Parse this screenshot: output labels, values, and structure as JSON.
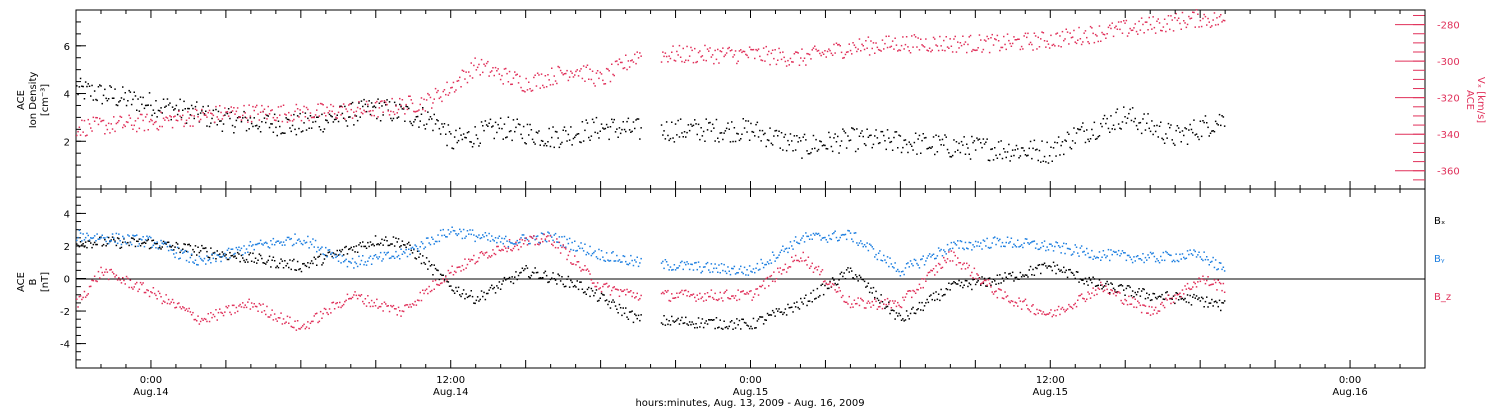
{
  "colors": {
    "black": "#000000",
    "red": "#e0305a",
    "blue": "#1e7fe0"
  },
  "chart_data": [
    {
      "type": "scatter",
      "panel": "top",
      "left_axis": {
        "label_line1": "ACE",
        "label_line2": "Ion Density",
        "label_line3": "[cm⁻³]",
        "ylim": [
          0,
          7.5
        ],
        "ticks": [
          2,
          4,
          6
        ]
      },
      "right_axis": {
        "label_line1": "ACE",
        "label_line2": "Vₓ [km/s]",
        "ylim": [
          -370,
          -272
        ],
        "ticks": [
          -280,
          -300,
          -320,
          -340,
          -360
        ],
        "tick_labels": [
          "-280",
          "-300",
          "-320",
          "-340",
          "-360"
        ]
      },
      "series": [
        {
          "color": "black",
          "axis": "left",
          "x": [
            -3,
            0,
            3,
            6,
            9,
            11,
            11.6,
            12,
            14,
            16,
            18,
            19.5,
            24,
            26,
            28,
            30,
            32,
            36,
            37,
            39,
            41,
            43
          ],
          "y": [
            4.2,
            3.6,
            2.9,
            2.7,
            3.4,
            3.0,
            2.7,
            2.0,
            2.6,
            2.2,
            2.6,
            2.5,
            2.5,
            1.8,
            2.1,
            2.0,
            1.8,
            1.6,
            2.3,
            3.1,
            2.2,
            3.0
          ]
        },
        {
          "color": "red",
          "axis": "right",
          "x": [
            -3,
            0,
            3,
            6,
            9,
            11,
            12,
            13,
            15,
            17,
            18,
            19.5,
            24,
            26,
            28,
            30,
            32,
            34,
            36,
            38,
            40,
            42,
            43
          ],
          "y": [
            -336,
            -333,
            -328,
            -328,
            -326,
            -322,
            -314,
            -302,
            -312,
            -304,
            -310,
            -296,
            -296,
            -298,
            -292,
            -290,
            -290,
            -290,
            -288,
            -284,
            -280,
            -276,
            -278
          ]
        }
      ]
    },
    {
      "type": "scatter",
      "panel": "bottom",
      "left_axis": {
        "label_line1": "ACE",
        "label_line2": "B",
        "label_line3": "[nT]",
        "ylim": [
          -5.5,
          5.5
        ],
        "ticks": [
          4,
          2,
          0,
          -2,
          -4
        ],
        "tick_labels": [
          "4",
          "2",
          "0",
          "-2",
          "-4"
        ]
      },
      "legend": {
        "position": "right",
        "entries": [
          {
            "label": "Bₓ",
            "color": "black"
          },
          {
            "label": "Bᵧ",
            "color": "blue"
          },
          {
            "label": "B_z",
            "color": "red"
          }
        ]
      },
      "series": [
        {
          "color": "black",
          "x": [
            -3,
            0,
            3,
            6,
            9,
            10,
            11,
            12,
            13,
            15,
            17,
            19.5,
            24,
            26,
            28,
            30,
            32,
            34,
            36,
            38,
            40,
            42,
            43
          ],
          "y": [
            2.3,
            2.2,
            1.5,
            0.8,
            2.4,
            2.3,
            1.0,
            -0.5,
            -1.2,
            0.5,
            -0.3,
            -2.5,
            -2.8,
            -1.5,
            0.5,
            -2.5,
            -0.5,
            0.0,
            0.8,
            -0.4,
            -1.0,
            -1.3,
            -1.7
          ]
        },
        {
          "color": "blue",
          "x": [
            -3,
            0,
            2,
            4,
            6,
            8,
            10,
            12,
            14,
            16,
            18,
            19.5,
            24,
            26,
            28,
            30,
            32,
            34,
            36,
            38,
            40,
            42,
            43
          ],
          "y": [
            2.7,
            2.3,
            1.0,
            2.0,
            2.5,
            1.0,
            1.5,
            3.0,
            2.3,
            2.6,
            1.5,
            1.0,
            0.5,
            2.5,
            2.7,
            0.5,
            2.0,
            2.3,
            2.0,
            1.5,
            1.3,
            1.5,
            0.5
          ]
        },
        {
          "color": "red",
          "x": [
            -3,
            -2,
            0,
            2,
            4,
            6,
            8,
            10,
            12,
            14,
            16,
            18,
            19.5,
            24,
            26,
            28,
            30,
            32,
            34,
            36,
            38,
            40,
            42,
            43
          ],
          "y": [
            -1.5,
            0.5,
            -0.8,
            -2.5,
            -1.5,
            -3.0,
            -1.0,
            -2.0,
            0.5,
            2.0,
            2.5,
            -0.5,
            -1.0,
            -1.0,
            1.5,
            -1.5,
            -1.5,
            1.5,
            -1.0,
            -2.2,
            -0.5,
            -2.0,
            0.0,
            -0.5
          ]
        }
      ]
    }
  ],
  "x_axis": {
    "title": "hours:minutes, Aug. 13, 2009 - Aug. 16, 2009",
    "xlim": [
      -3,
      51
    ],
    "labels": [
      {
        "x": 0,
        "time": "0:00",
        "date": "Aug.14"
      },
      {
        "x": 12,
        "time": "12:00",
        "date": "Aug.14"
      },
      {
        "x": 24,
        "time": "0:00",
        "date": "Aug.15"
      },
      {
        "x": 36,
        "time": "12:00",
        "date": "Aug.15"
      },
      {
        "x": 48,
        "time": "0:00",
        "date": "Aug.16"
      }
    ]
  }
}
